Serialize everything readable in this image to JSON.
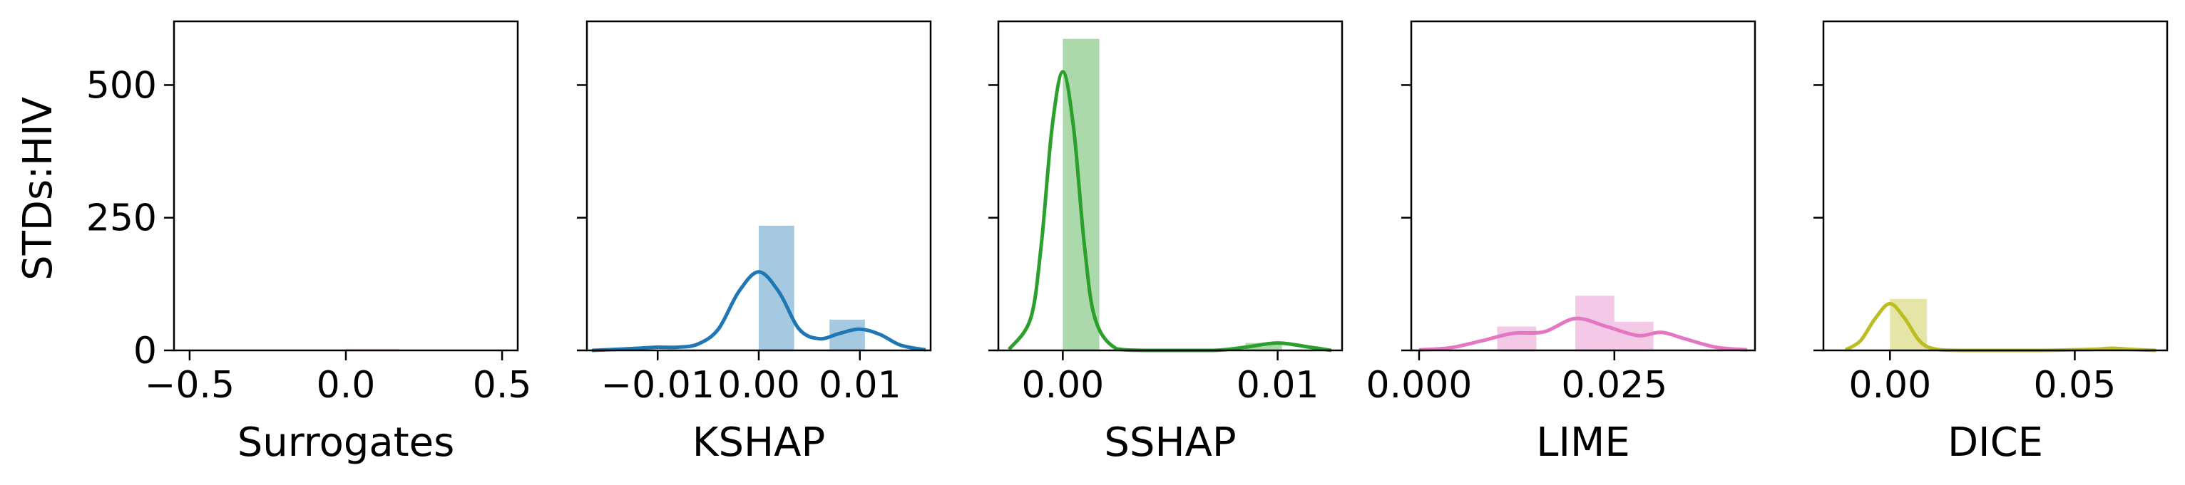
{
  "figure": {
    "ylabel": "STDs:HIV"
  },
  "chart_data": [
    {
      "type": "histogram",
      "xlabel": "Surrogates",
      "color": "#e377c2",
      "xlim": [
        -0.55,
        0.55
      ],
      "ylim": [
        0,
        620
      ],
      "xticks": [
        -0.5,
        0.0,
        0.5
      ],
      "xtick_labels": [
        "−0.5",
        "0.0",
        "0.5"
      ],
      "yticks": [
        0,
        250,
        500
      ],
      "ytick_labels": [
        "0",
        "250",
        "500"
      ],
      "bins": [
        {
          "x0": 0.0,
          "x1": 0.17,
          "count": 3
        }
      ],
      "kde": []
    },
    {
      "type": "histogram",
      "xlabel": "KSHAP",
      "color": "#1f77b4",
      "xlim": [
        -0.017,
        0.017
      ],
      "ylim": [
        0,
        620
      ],
      "xticks": [
        -0.01,
        0.0,
        0.01
      ],
      "xtick_labels": [
        "−0.01",
        "0.00",
        "0.01"
      ],
      "yticks": [
        0,
        250,
        500
      ],
      "ytick_labels": [],
      "bins": [
        {
          "x0": 0.0,
          "x1": 0.0035,
          "count": 235
        },
        {
          "x0": 0.007,
          "x1": 0.0105,
          "count": 58
        }
      ],
      "kde": [
        {
          "x": -0.0165,
          "y": 0
        },
        {
          "x": -0.014,
          "y": 2
        },
        {
          "x": -0.012,
          "y": 4
        },
        {
          "x": -0.01,
          "y": 6
        },
        {
          "x": -0.008,
          "y": 6
        },
        {
          "x": -0.006,
          "y": 12
        },
        {
          "x": -0.004,
          "y": 40
        },
        {
          "x": -0.002,
          "y": 110
        },
        {
          "x": 0.0,
          "y": 148
        },
        {
          "x": 0.002,
          "y": 110
        },
        {
          "x": 0.004,
          "y": 40
        },
        {
          "x": 0.006,
          "y": 22
        },
        {
          "x": 0.008,
          "y": 32
        },
        {
          "x": 0.01,
          "y": 40
        },
        {
          "x": 0.012,
          "y": 30
        },
        {
          "x": 0.014,
          "y": 10
        },
        {
          "x": 0.0165,
          "y": 1
        }
      ]
    },
    {
      "type": "histogram",
      "xlabel": "SSHAP",
      "color": "#2ca02c",
      "xlim": [
        -0.003,
        0.013
      ],
      "ylim": [
        0,
        620
      ],
      "xticks": [
        0.0,
        0.01
      ],
      "xtick_labels": [
        "0.00",
        "0.01"
      ],
      "yticks": [
        0,
        250,
        500
      ],
      "ytick_labels": [],
      "bins": [
        {
          "x0": 0.0,
          "x1": 0.0017,
          "count": 587
        },
        {
          "x0": 0.0085,
          "x1": 0.0102,
          "count": 14
        }
      ],
      "kde": [
        {
          "x": -0.0025,
          "y": 2
        },
        {
          "x": -0.0015,
          "y": 60
        },
        {
          "x": -0.001,
          "y": 200
        },
        {
          "x": -0.0005,
          "y": 420
        },
        {
          "x": 0.0,
          "y": 525
        },
        {
          "x": 0.0005,
          "y": 420
        },
        {
          "x": 0.001,
          "y": 200
        },
        {
          "x": 0.0015,
          "y": 60
        },
        {
          "x": 0.0025,
          "y": 3
        },
        {
          "x": 0.004,
          "y": 0
        },
        {
          "x": 0.007,
          "y": 0
        },
        {
          "x": 0.0085,
          "y": 6
        },
        {
          "x": 0.01,
          "y": 14
        },
        {
          "x": 0.0115,
          "y": 6
        },
        {
          "x": 0.0125,
          "y": 0
        }
      ]
    },
    {
      "type": "histogram",
      "xlabel": "LIME",
      "color": "#e377c2",
      "xlim": [
        -0.001,
        0.043
      ],
      "ylim": [
        0,
        620
      ],
      "xticks": [
        0.0,
        0.025
      ],
      "xtick_labels": [
        "0.000",
        "0.025"
      ],
      "yticks": [
        0,
        250,
        500
      ],
      "ytick_labels": [],
      "bins": [
        {
          "x0": 0.01,
          "x1": 0.015,
          "count": 45
        },
        {
          "x0": 0.02,
          "x1": 0.025,
          "count": 103
        },
        {
          "x0": 0.025,
          "x1": 0.03,
          "count": 54
        }
      ],
      "kde": [
        {
          "x": 0.0,
          "y": 1
        },
        {
          "x": 0.004,
          "y": 5
        },
        {
          "x": 0.008,
          "y": 18
        },
        {
          "x": 0.012,
          "y": 32
        },
        {
          "x": 0.016,
          "y": 35
        },
        {
          "x": 0.02,
          "y": 60
        },
        {
          "x": 0.024,
          "y": 45
        },
        {
          "x": 0.028,
          "y": 28
        },
        {
          "x": 0.031,
          "y": 34
        },
        {
          "x": 0.034,
          "y": 22
        },
        {
          "x": 0.038,
          "y": 6
        },
        {
          "x": 0.042,
          "y": 1
        }
      ]
    },
    {
      "type": "histogram",
      "xlabel": "DICE",
      "color": "#bcbd22",
      "xlim": [
        -0.018,
        0.075
      ],
      "ylim": [
        0,
        620
      ],
      "xticks": [
        0.0,
        0.05
      ],
      "xtick_labels": [
        "0.00",
        "0.05"
      ],
      "yticks": [
        0,
        250,
        500
      ],
      "ytick_labels": [],
      "bins": [
        {
          "x0": 0.0,
          "x1": 0.01,
          "count": 97
        }
      ],
      "kde": [
        {
          "x": -0.012,
          "y": 1
        },
        {
          "x": -0.008,
          "y": 18
        },
        {
          "x": -0.004,
          "y": 60
        },
        {
          "x": 0.0,
          "y": 88
        },
        {
          "x": 0.004,
          "y": 60
        },
        {
          "x": 0.008,
          "y": 18
        },
        {
          "x": 0.012,
          "y": 3
        },
        {
          "x": 0.02,
          "y": 0
        },
        {
          "x": 0.04,
          "y": 0
        },
        {
          "x": 0.055,
          "y": 2
        },
        {
          "x": 0.06,
          "y": 4
        },
        {
          "x": 0.065,
          "y": 2
        },
        {
          "x": 0.072,
          "y": 0
        }
      ]
    }
  ]
}
